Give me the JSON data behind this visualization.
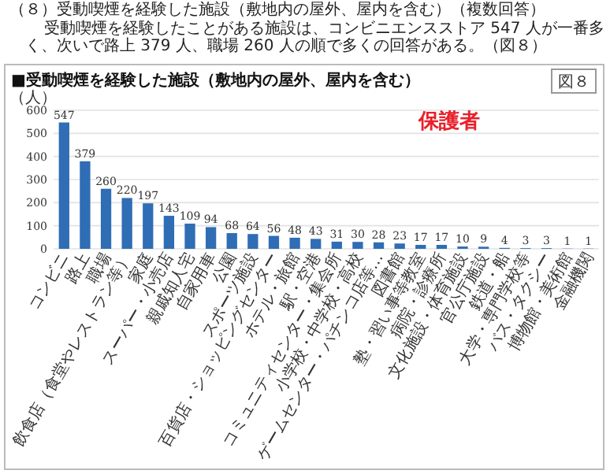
{
  "chart_data": {
    "type": "bar",
    "title": "■受動喫煙を経験した施設（敷地内の屋外、屋内を含む）",
    "ylabel": "（人）",
    "categories": [
      "コンビニ",
      "路上",
      "職場",
      "飲食店（食堂やレストラン等）",
      "家庭",
      "スーパー・小売店",
      "親戚知人宅",
      "自家用車",
      "公園",
      "スポーツ施設",
      "百貨店・ショッピングセンター",
      "ホテル・旅館",
      "駅・空港",
      "コミュニティセンター・集会所",
      "小学校・中学校・高校",
      "ゲームセンター・パチンコ店等…",
      "図書館",
      "塾・習い事等教室",
      "病院・診療所",
      "文化施設・体育施設",
      "官公庁施設",
      "鉄道・船",
      "大学・専門学校等",
      "バス・タクシー",
      "博物館・美術館",
      "金融機関"
    ],
    "values": [
      547,
      379,
      260,
      220,
      197,
      143,
      109,
      94,
      68,
      64,
      56,
      48,
      43,
      31,
      30,
      28,
      23,
      17,
      17,
      10,
      9,
      4,
      3,
      3,
      1,
      1
    ],
    "color": "#2f6db5",
    "data_labels": true,
    "ylim": [
      0,
      600
    ],
    "yticks": [
      0,
      100,
      200,
      300,
      400,
      500,
      600
    ],
    "grid": "y",
    "annotations": [
      "（８）受動喫煙を経験した施設（敷地内の屋外、屋内を含む）（複数回答）",
      "受動喫煙を経験したことがある施設は、コンビニエンスストア 547 人が一番多く、次いで路上 379 人、職場 260 人の順で多くの回答がある。（図８）",
      "図８",
      "保護者"
    ]
  }
}
